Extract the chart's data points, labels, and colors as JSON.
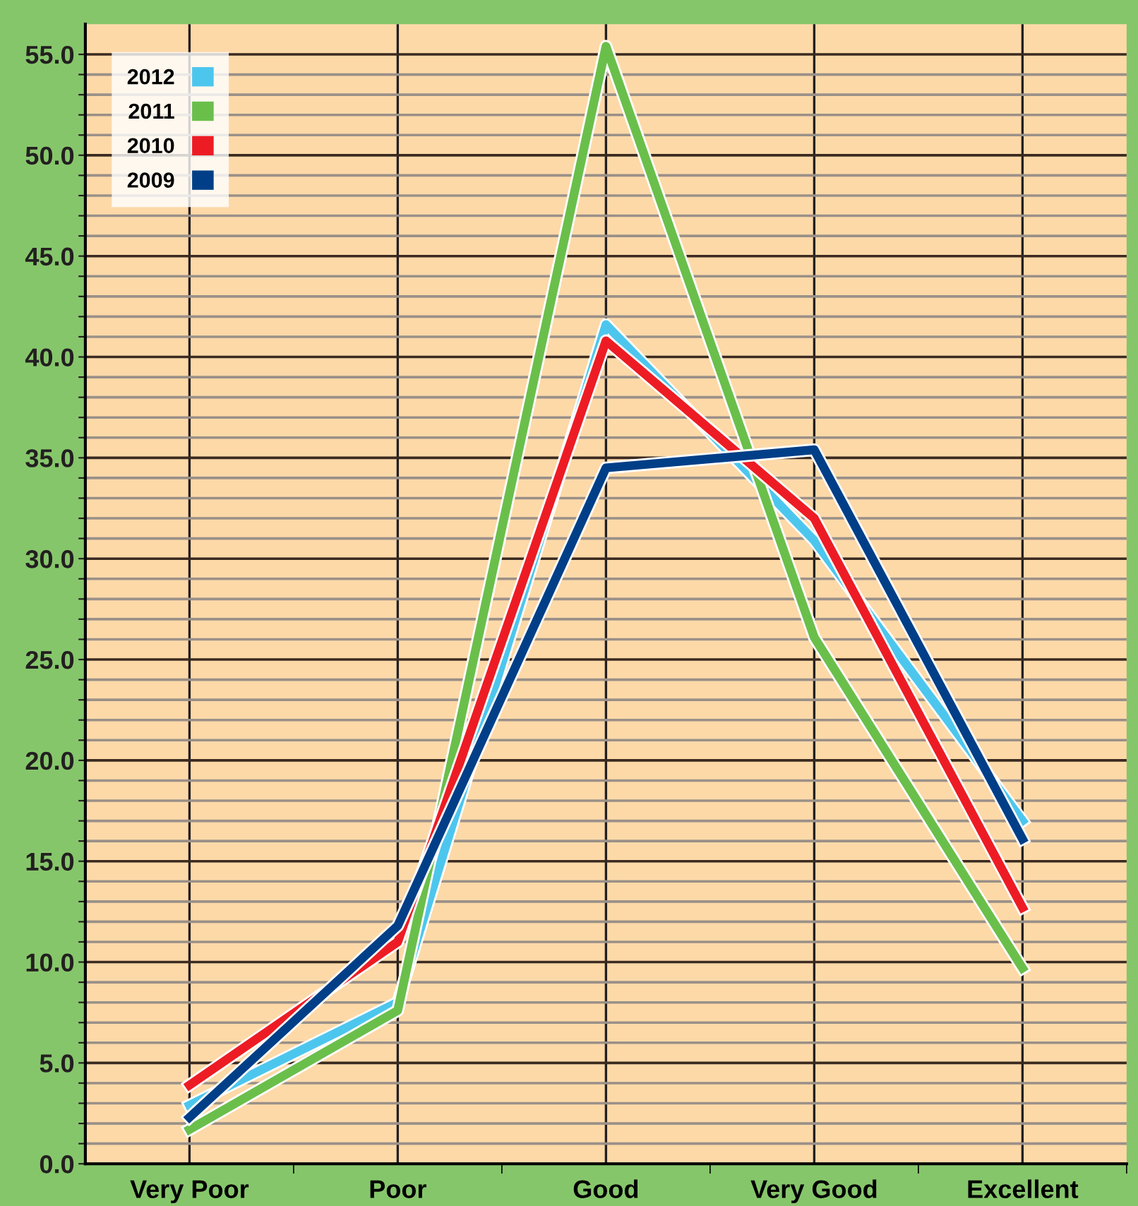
{
  "chart_data": {
    "type": "line",
    "categories": [
      "Very Poor",
      "Poor",
      "Good",
      "Very Good",
      "Excellent"
    ],
    "series": [
      {
        "name": "2009",
        "color": "#003f87",
        "values": [
          2.3,
          11.8,
          34.5,
          35.4,
          16.1
        ]
      },
      {
        "name": "2010",
        "color": "#ed1c24",
        "values": [
          3.9,
          11.0,
          40.8,
          32.0,
          12.7
        ]
      },
      {
        "name": "2011",
        "color": "#6abf4b",
        "values": [
          1.7,
          7.6,
          55.4,
          26.1,
          9.7
        ]
      },
      {
        "name": "2012",
        "color": "#4dc6ee",
        "values": [
          2.9,
          8.0,
          41.6,
          30.9,
          17.0
        ]
      }
    ],
    "ylim": [
      0,
      56.5
    ],
    "yticks": [
      {
        "value": 0,
        "label": "0.0"
      },
      {
        "value": 1,
        "label": null
      },
      {
        "value": 2,
        "label": null
      },
      {
        "value": 3,
        "label": null
      },
      {
        "value": 4,
        "label": null
      },
      {
        "value": 5,
        "label": "5.0"
      },
      {
        "value": 6,
        "label": null
      },
      {
        "value": 7,
        "label": null
      },
      {
        "value": 8,
        "label": null
      },
      {
        "value": 9,
        "label": null
      },
      {
        "value": 10,
        "label": "10.0"
      },
      {
        "value": 11,
        "label": null
      },
      {
        "value": 12,
        "label": null
      },
      {
        "value": 13,
        "label": null
      },
      {
        "value": 14,
        "label": null
      },
      {
        "value": 15,
        "label": "15.0"
      },
      {
        "value": 16,
        "label": null
      },
      {
        "value": 17,
        "label": null
      },
      {
        "value": 18,
        "label": null
      },
      {
        "value": 19,
        "label": null
      },
      {
        "value": 20,
        "label": "20.0"
      },
      {
        "value": 21,
        "label": null
      },
      {
        "value": 22,
        "label": null
      },
      {
        "value": 23,
        "label": null
      },
      {
        "value": 24,
        "label": null
      },
      {
        "value": 25,
        "label": "25.0"
      },
      {
        "value": 26,
        "label": null
      },
      {
        "value": 27,
        "label": null
      },
      {
        "value": 28,
        "label": null
      },
      {
        "value": 29,
        "label": null
      },
      {
        "value": 30,
        "label": "30.0"
      },
      {
        "value": 31,
        "label": null
      },
      {
        "value": 32,
        "label": null
      },
      {
        "value": 33,
        "label": null
      },
      {
        "value": 34,
        "label": null
      },
      {
        "value": 35,
        "label": "35.0"
      },
      {
        "value": 36,
        "label": null
      },
      {
        "value": 37,
        "label": null
      },
      {
        "value": 38,
        "label": null
      },
      {
        "value": 39,
        "label": null
      },
      {
        "value": 40,
        "label": "40.0"
      },
      {
        "value": 41,
        "label": null
      },
      {
        "value": 42,
        "label": null
      },
      {
        "value": 43,
        "label": null
      },
      {
        "value": 44,
        "label": null
      },
      {
        "value": 45,
        "label": "45.0"
      },
      {
        "value": 46,
        "label": null
      },
      {
        "value": 47,
        "label": null
      },
      {
        "value": 48,
        "label": null
      },
      {
        "value": 49,
        "label": null
      },
      {
        "value": 50,
        "label": "50.0"
      },
      {
        "value": 51,
        "label": null
      },
      {
        "value": 52,
        "label": null
      },
      {
        "value": 53,
        "label": null
      },
      {
        "value": 54,
        "label": null
      },
      {
        "value": 55,
        "label": "55.0"
      }
    ],
    "grid": true,
    "legend": "top left",
    "marker": "none",
    "line_style": "solid"
  }
}
